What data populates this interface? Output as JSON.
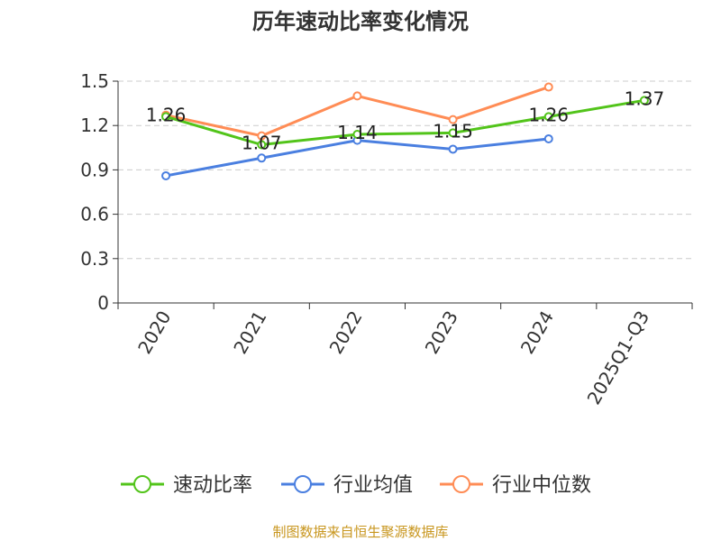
{
  "chart_data": {
    "type": "line",
    "title": "历年速动比率变化情况",
    "categories": [
      "2020",
      "2021",
      "2022",
      "2023",
      "2024",
      "2025Q1-Q3"
    ],
    "ylim": [
      0,
      1.5
    ],
    "yticks": [
      "0",
      "0.3",
      "0.6",
      "0.9",
      "1.2",
      "1.5"
    ],
    "grid": true,
    "legend_position": "bottom",
    "series": [
      {
        "name": "速动比率",
        "color": "#52c41a",
        "values": [
          1.26,
          1.07,
          1.14,
          1.15,
          1.26,
          1.37
        ],
        "labels": [
          "1.26",
          "1.07",
          "1.14",
          "1.15",
          "1.26",
          "1.37"
        ]
      },
      {
        "name": "行业均值",
        "color": "#4a7fe0",
        "values": [
          0.86,
          0.98,
          1.1,
          1.04,
          1.11,
          null
        ]
      },
      {
        "name": "行业中位数",
        "color": "#ff8c55",
        "values": [
          1.27,
          1.13,
          1.4,
          1.24,
          1.46,
          null
        ]
      }
    ]
  },
  "source": "制图数据来自恒生聚源数据库"
}
